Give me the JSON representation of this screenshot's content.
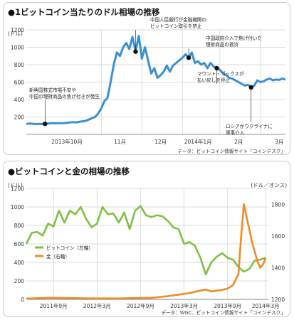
{
  "colors": {
    "btc_line": "#3a8fd3",
    "btc_green": "#7dc242",
    "gold_orange": "#f08a24",
    "grid": "#cfcfcf",
    "marker": "#111111"
  },
  "chart_data": [
    {
      "type": "line",
      "title": "●1ビットコイン当たりのドル相場の推移",
      "ylabel": "(ドル)",
      "ylim": [
        0,
        1200
      ],
      "yticks": [
        "200",
        "400",
        "600",
        "800",
        "1000",
        "1200"
      ],
      "x_labels": [
        "2013年10月",
        "11月",
        "12月",
        "2014年1月",
        "2月",
        "3月"
      ],
      "grid": true,
      "series": [
        {
          "values": [
            [
              0,
              120
            ],
            [
              1,
              125
            ],
            [
              2,
              122
            ],
            [
              3,
              118
            ],
            [
              4,
              120
            ],
            [
              5,
              118
            ],
            [
              6,
              122
            ],
            [
              7,
              125
            ],
            [
              8,
              130
            ],
            [
              9,
              127
            ],
            [
              10,
              128
            ],
            [
              11,
              128
            ],
            [
              12,
              130
            ],
            [
              13,
              133
            ],
            [
              14,
              138
            ],
            [
              15,
              140
            ],
            [
              16,
              138
            ],
            [
              17,
              145
            ],
            [
              18,
              150
            ],
            [
              19,
              155
            ],
            [
              20,
              170
            ],
            [
              21,
              185
            ],
            [
              22,
              200
            ],
            [
              23,
              240
            ],
            [
              24,
              300
            ],
            [
              25,
              380
            ],
            [
              26,
              420
            ],
            [
              27,
              600
            ],
            [
              28,
              800
            ],
            [
              29,
              940
            ],
            [
              30,
              900
            ],
            [
              31,
              1000
            ],
            [
              32,
              1050
            ],
            [
              33,
              980
            ],
            [
              34,
              1120
            ],
            [
              35,
              950
            ],
            [
              36,
              1130
            ],
            [
              37,
              870
            ],
            [
              38,
              1000
            ],
            [
              39,
              850
            ],
            [
              40,
              700
            ],
            [
              41,
              760
            ],
            [
              42,
              650
            ],
            [
              43,
              680
            ],
            [
              44,
              720
            ],
            [
              45,
              790
            ],
            [
              46,
              720
            ],
            [
              47,
              790
            ],
            [
              48,
              820
            ],
            [
              49,
              850
            ],
            [
              50,
              880
            ],
            [
              51,
              920
            ],
            [
              52,
              880
            ],
            [
              53,
              940
            ],
            [
              54,
              820
            ],
            [
              55,
              840
            ],
            [
              56,
              800
            ],
            [
              57,
              820
            ],
            [
              58,
              760
            ],
            [
              59,
              820
            ],
            [
              60,
              780
            ],
            [
              61,
              760
            ],
            [
              62,
              740
            ],
            [
              63,
              700
            ],
            [
              64,
              680
            ],
            [
              65,
              650
            ],
            [
              66,
              640
            ],
            [
              67,
              620
            ],
            [
              68,
              600
            ],
            [
              69,
              580
            ],
            [
              70,
              560
            ],
            [
              71,
              570
            ],
            [
              72,
              540
            ],
            [
              73,
              560
            ],
            [
              74,
              620
            ],
            [
              75,
              600
            ],
            [
              76,
              610
            ],
            [
              77,
              630
            ],
            [
              78,
              640
            ],
            [
              79,
              620
            ],
            [
              80,
              630
            ],
            [
              81,
              625
            ],
            [
              82,
              640
            ],
            [
              83,
              630
            ]
          ]
        }
      ],
      "markers": [
        {
          "x": 6,
          "y": 122,
          "label": "新興国株式市場不安や 中国の理財商品の焦げ付きが発生"
        },
        {
          "x": 35,
          "y": 950,
          "label": "中国人民銀行が金融機関の ビットコイン取引を禁止"
        },
        {
          "x": 52,
          "y": 880,
          "label": "中国政府介入で焦げ付いた 理財商品の救済"
        },
        {
          "x": 61,
          "y": 760,
          "label": "マウント・ゴックスが 払い戻しを停止"
        },
        {
          "x": 72,
          "y": 540,
          "label": "ロシアがウクライナに 軍事介入"
        }
      ],
      "source": "データ：ビットコイン情報サイト「コインデスク」"
    },
    {
      "type": "line",
      "title": "●ビットコインと金の相場の推移",
      "ylabel": "(ドル)",
      "ylabel_right": "(ドル／オンス)",
      "ylim": [
        0,
        1200
      ],
      "ylim_right": [
        1200,
        1900
      ],
      "yticks": [
        "0",
        "200",
        "400",
        "600",
        "800",
        "1000",
        "1200"
      ],
      "yticks_right": [
        "1200",
        "1400",
        "1600",
        "1800"
      ],
      "x_labels": [
        "2011年9月",
        "2012年3月",
        "2012年9月",
        "2013年3月",
        "2013年9月",
        "2014年3月"
      ],
      "grid": true,
      "series": [
        {
          "name": "ビットコイン（左軸）",
          "axis": "left",
          "color_key": "btc_green",
          "values": [
            [
              0,
              600
            ],
            [
              2,
              720
            ],
            [
              4,
              730
            ],
            [
              6,
              690
            ],
            [
              8,
              820
            ],
            [
              10,
              790
            ],
            [
              12,
              960
            ],
            [
              14,
              830
            ],
            [
              16,
              960
            ],
            [
              18,
              920
            ],
            [
              20,
              1000
            ],
            [
              22,
              870
            ],
            [
              24,
              780
            ],
            [
              26,
              820
            ],
            [
              28,
              1000
            ],
            [
              30,
              920
            ],
            [
              32,
              930
            ],
            [
              34,
              830
            ],
            [
              36,
              940
            ],
            [
              38,
              760
            ],
            [
              40,
              960
            ],
            [
              42,
              1010
            ],
            [
              44,
              910
            ],
            [
              46,
              890
            ],
            [
              48,
              910
            ],
            [
              50,
              900
            ],
            [
              52,
              850
            ],
            [
              54,
              780
            ],
            [
              56,
              760
            ],
            [
              58,
              600
            ],
            [
              60,
              620
            ],
            [
              62,
              580
            ],
            [
              64,
              450
            ],
            [
              66,
              270
            ],
            [
              68,
              400
            ],
            [
              70,
              460
            ],
            [
              72,
              500
            ],
            [
              74,
              450
            ],
            [
              76,
              430
            ],
            [
              78,
              350
            ],
            [
              80,
              300
            ],
            [
              82,
              330
            ],
            [
              84,
              420
            ],
            [
              86,
              430
            ],
            [
              88,
              450
            ]
          ]
        },
        {
          "name": "金（右軸）",
          "axis": "right",
          "color_key": "gold_orange",
          "values": [
            [
              0,
              1205
            ],
            [
              8,
              1210
            ],
            [
              16,
              1208
            ],
            [
              24,
              1206
            ],
            [
              34,
              1206
            ],
            [
              40,
              1208
            ],
            [
              46,
              1210
            ],
            [
              52,
              1220
            ],
            [
              56,
              1230
            ],
            [
              60,
              1240
            ],
            [
              64,
              1255
            ],
            [
              66,
              1262
            ],
            [
              68,
              1250
            ],
            [
              70,
              1255
            ],
            [
              72,
              1260
            ],
            [
              74,
              1268
            ],
            [
              76,
              1290
            ],
            [
              78,
              1360
            ],
            [
              79,
              1600
            ],
            [
              80,
              1800
            ],
            [
              81,
              1720
            ],
            [
              82,
              1640
            ],
            [
              83,
              1560
            ],
            [
              84,
              1500
            ],
            [
              85,
              1440
            ],
            [
              86,
              1400
            ],
            [
              87,
              1420
            ],
            [
              88,
              1460
            ]
          ]
        }
      ],
      "source": "データ：WGC、ビットコイン情報サイト「コインデスク」"
    }
  ]
}
